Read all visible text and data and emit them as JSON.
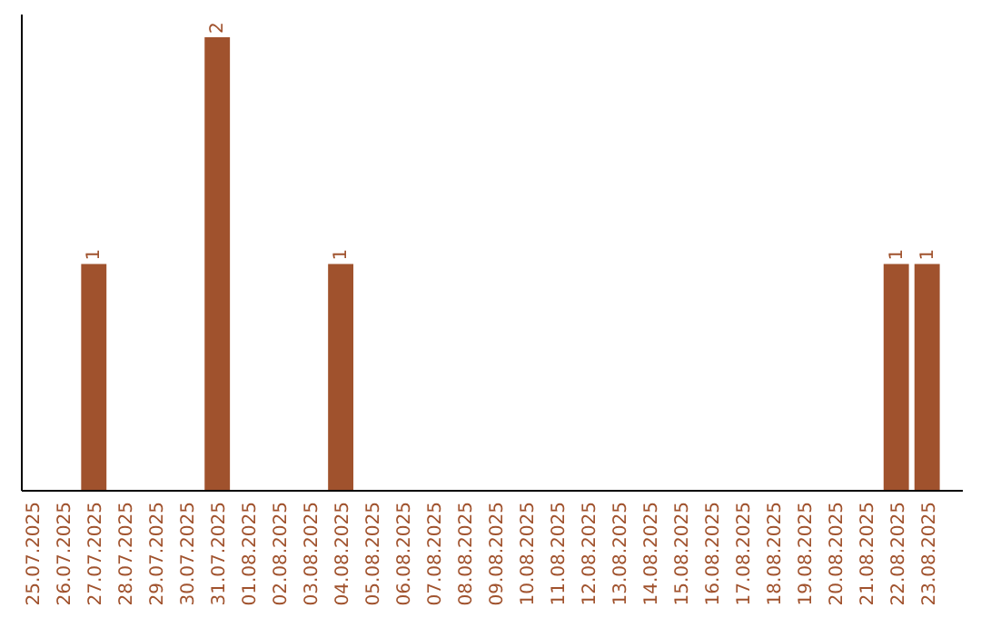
{
  "chart_data": {
    "type": "bar",
    "categories": [
      "25.07.2025",
      "26.07.2025",
      "27.07.2025",
      "28.07.2025",
      "29.07.2025",
      "30.07.2025",
      "31.07.2025",
      "01.08.2025",
      "02.08.2025",
      "03.08.2025",
      "04.08.2025",
      "05.08.2025",
      "06.08.2025",
      "07.08.2025",
      "08.08.2025",
      "09.08.2025",
      "10.08.2025",
      "11.08.2025",
      "12.08.2025",
      "13.08.2025",
      "14.08.2025",
      "15.08.2025",
      "16.08.2025",
      "17.08.2025",
      "18.08.2025",
      "19.08.2025",
      "20.08.2025",
      "21.08.2025",
      "22.08.2025",
      "23.08.2025"
    ],
    "values": [
      0,
      0,
      1,
      0,
      0,
      0,
      2,
      0,
      0,
      0,
      1,
      0,
      0,
      0,
      0,
      0,
      0,
      0,
      0,
      0,
      0,
      0,
      0,
      0,
      0,
      0,
      0,
      0,
      1,
      1
    ],
    "value_labels": [
      null,
      null,
      "1",
      null,
      null,
      null,
      "2",
      null,
      null,
      null,
      "1",
      null,
      null,
      null,
      null,
      null,
      null,
      null,
      null,
      null,
      null,
      null,
      null,
      null,
      null,
      null,
      null,
      null,
      "1",
      "1"
    ],
    "color": "#a0522d",
    "ylim": [
      0,
      2.1
    ],
    "tick_labels": "x"
  }
}
